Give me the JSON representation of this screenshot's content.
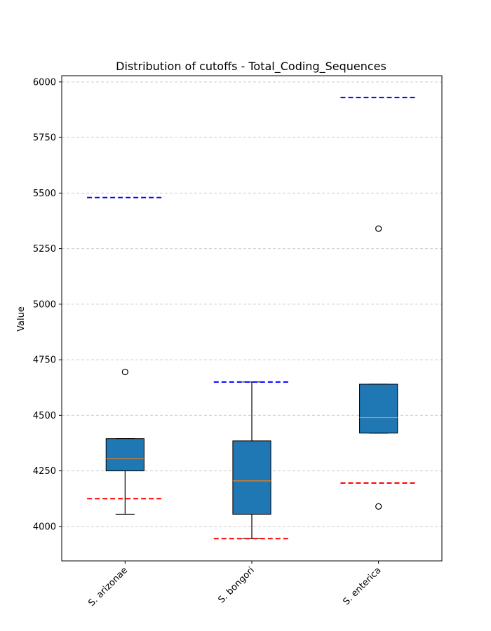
{
  "chart_data": {
    "type": "box",
    "title": "Distribution of cutoffs - Total_Coding_Sequences",
    "xlabel": "",
    "ylabel": "Value",
    "ylim": [
      3845,
      6028
    ],
    "yticks": [
      4000,
      4250,
      4500,
      4750,
      5000,
      5250,
      5500,
      5750,
      6000
    ],
    "grid": "y-dashed",
    "categories": [
      "S. arizonae",
      "S. bongori",
      "S. enterica"
    ],
    "boxes": [
      {
        "q1": 4250,
        "median": 4305,
        "q3": 4395,
        "whisker_low": 4055,
        "whisker_high": 4395,
        "fliers": [
          4695
        ]
      },
      {
        "q1": 4055,
        "median": 4205,
        "q3": 4385,
        "whisker_low": 3945,
        "whisker_high": 4650,
        "fliers": []
      },
      {
        "q1": 4420,
        "median": 4490,
        "q3": 4640,
        "whisker_low": 4420,
        "whisker_high": 4640,
        "fliers": [
          5340,
          4090
        ]
      }
    ],
    "upper_cutoffs": [
      5480,
      4650,
      5930
    ],
    "lower_cutoffs": [
      4125,
      3945,
      4195
    ],
    "colors": {
      "box_fill": "#1f77b4",
      "median": "#ff7f0e",
      "upper_cutoff": "#0000ff",
      "lower_cutoff": "#ff0000",
      "grid": "#cccccc"
    }
  }
}
